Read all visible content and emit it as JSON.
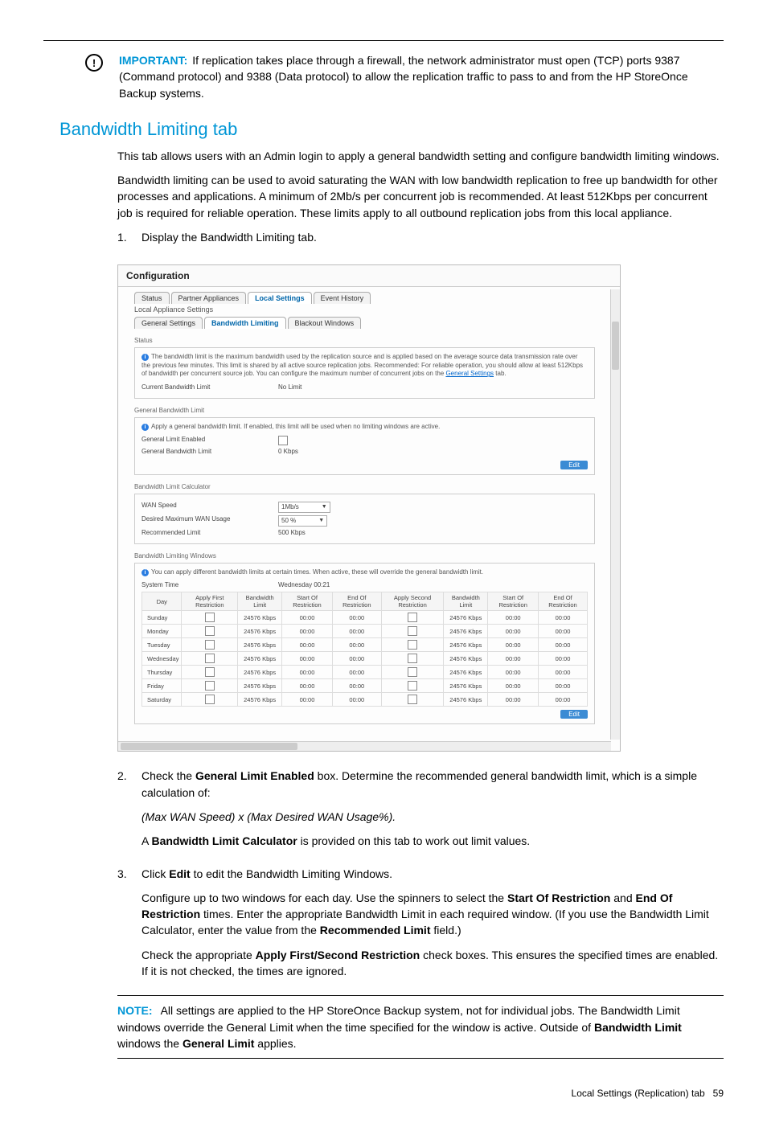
{
  "important": {
    "label": "IMPORTANT:",
    "text": "If replication takes place through a firewall, the network administrator must open (TCP) ports 9387 (Command protocol) and 9388 (Data protocol) to allow the replication traffic to pass to and from the HP StoreOnce Backup systems."
  },
  "section_title": "Bandwidth Limiting tab",
  "intro": {
    "p1": "This tab allows users with an Admin login to apply a general bandwidth setting and configure bandwidth limiting windows.",
    "p2": "Bandwidth limiting can be used to avoid saturating the WAN with low bandwidth replication to free up bandwidth for other processes and applications. A minimum of 2Mb/s per concurrent job is recommended. At least 512Kbps per concurrent job is required for reliable operation. These limits apply to all outbound replication jobs from this local appliance."
  },
  "steps": {
    "s1": "Display the Bandwidth Limiting tab.",
    "s2": {
      "start": "Check the ",
      "bold1": "General Limit Enabled",
      "mid": " box. Determine the recommended general bandwidth limit, which is a simple calculation of:",
      "formula": "(Max WAN Speed) x (Max Desired WAN Usage%).",
      "calc_a": "A ",
      "bold2": "Bandwidth Limit Calculator",
      "calc_b": " is provided on this tab to work out limit values."
    },
    "s3": {
      "start": "Click ",
      "bold1": "Edit",
      "mid": " to edit the Bandwidth Limiting Windows.",
      "p2a": "Configure up to two windows for each day. Use the spinners to select the ",
      "p2b1": "Start Of Restriction",
      "p2c": " and ",
      "p2b2": "End Of Restriction",
      "p2d": " times. Enter the appropriate Bandwidth Limit in each required window. (If you use the Bandwidth Limit Calculator, enter the value from the ",
      "p2b3": "Recommended Limit",
      "p2e": " field.)",
      "p3a": "Check the appropriate ",
      "p3b": "Apply First/Second Restriction",
      "p3c": " check boxes. This ensures the specified times are enabled. If it is not checked, the times are ignored."
    }
  },
  "note": {
    "label": "NOTE:",
    "a": "All settings are applied to the HP StoreOnce Backup system, not for individual jobs. The Bandwidth Limit windows override the General Limit when the time specified for the window is active. Outside of ",
    "b1": "Bandwidth Limit",
    "c": " windows the ",
    "b2": "General Limit",
    "d": " applies."
  },
  "footer": {
    "label": "Local Settings (Replication) tab",
    "page": "59"
  },
  "screenshot": {
    "title": "Configuration",
    "tabs1": [
      "Status",
      "Partner Appliances",
      "Local Settings",
      "Event History"
    ],
    "tabs1_active": 2,
    "sub1": "Local Appliance Settings",
    "tabs2": [
      "General Settings",
      "Bandwidth Limiting",
      "Blackout Windows"
    ],
    "tabs2_active": 1,
    "status_label": "Status",
    "info_main": "The bandwidth limit is the maximum bandwidth used by the replication source and is applied based on the average source data transmission rate over the previous few minutes. This limit is shared by all active source replication jobs. Recommended: For reliable operation, you should allow at least 512Kbps of bandwidth per concurrent source job. You can configure the maximum number of concurrent jobs on the ",
    "info_link": "General Settings",
    "info_tail": " tab.",
    "current_limit_k": "Current Bandwidth Limit",
    "current_limit_v": "No Limit",
    "general_hdr": "General Bandwidth Limit",
    "general_info": "Apply a general bandwidth limit. If enabled, this limit will be used when no limiting windows are active.",
    "gen_enabled_k": "General Limit Enabled",
    "gen_limit_k": "General Bandwidth Limit",
    "gen_limit_v": "0 Kbps",
    "edit_btn": "Edit",
    "calc_hdr": "Bandwidth Limit Calculator",
    "wan_speed_k": "WAN Speed",
    "wan_speed_v": "1Mb/s",
    "wan_usage_k": "Desired Maximum WAN Usage",
    "wan_usage_v": "50 %",
    "rec_limit_k": "Recommended Limit",
    "rec_limit_v": "500 Kbps",
    "win_hdr": "Bandwidth Limiting Windows",
    "win_info": "You can apply different bandwidth limits at certain times. When active, these will override the general bandwidth limit.",
    "sys_time_k": "System Time",
    "sys_time_v": "Wednesday 00:21",
    "table": {
      "headers": [
        "Day",
        "Apply First Restriction",
        "Bandwidth Limit",
        "Start Of Restriction",
        "End Of Restriction",
        "Apply Second Restriction",
        "Bandwidth Limit",
        "Start Of Restriction",
        "End Of Restriction"
      ],
      "days": [
        "Sunday",
        "Monday",
        "Tuesday",
        "Wednesday",
        "Thursday",
        "Friday",
        "Saturday"
      ],
      "bw": "24576 Kbps",
      "time": "00:00"
    }
  }
}
